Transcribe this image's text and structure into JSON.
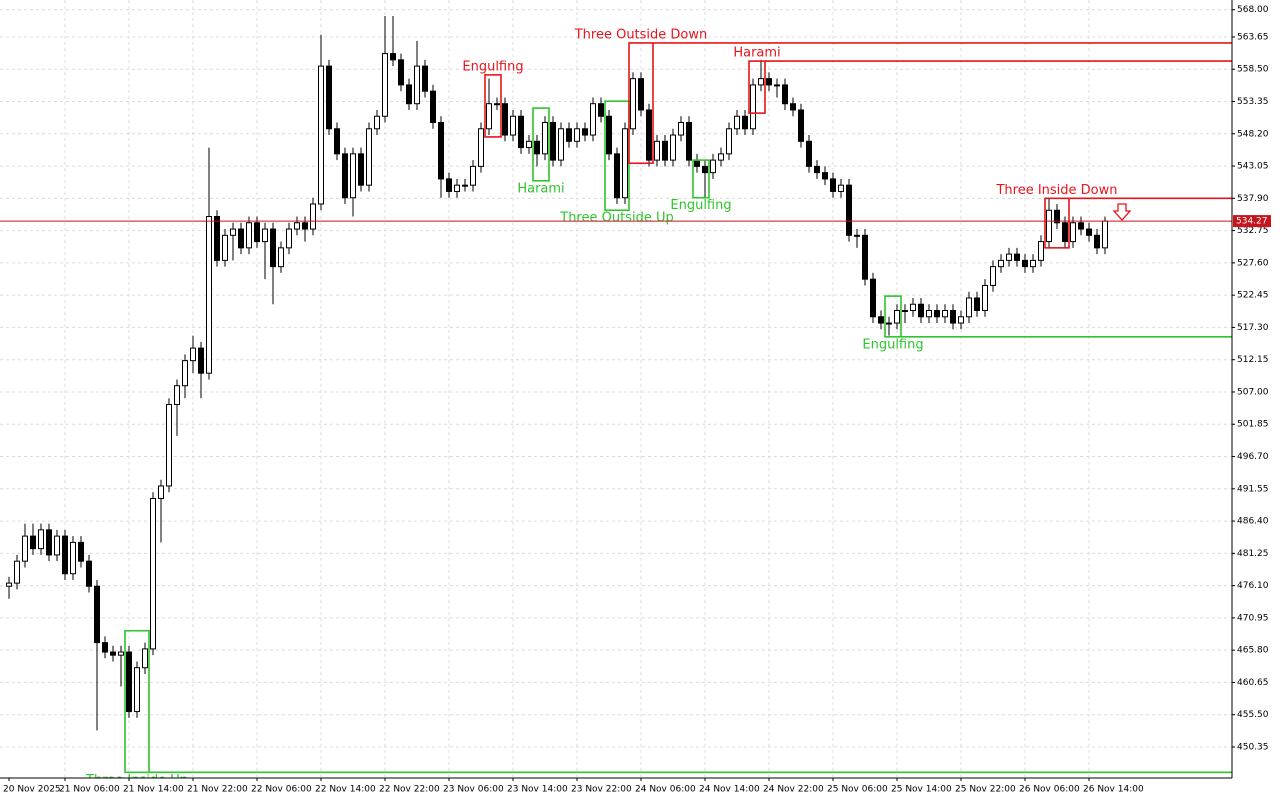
{
  "chart_data": {
    "type": "candlestick",
    "up_color": "#ffffff",
    "down_color": "#000000",
    "outline_color": "#000000",
    "bear_color": "#e8141c",
    "bull_color": "#2ec52e",
    "grid": true,
    "ylim": [
      445.4,
      569.55
    ],
    "yticks": [
      {
        "value": 568,
        "label": "568.00"
      },
      563.65,
      {
        "value": 558.5,
        "label": "558.50"
      },
      553.35,
      {
        "value": 548.2,
        "label": "548.20"
      },
      543.05,
      {
        "value": 537.9,
        "label": "537.90"
      },
      532.75,
      {
        "value": 527.6,
        "label": "527.60"
      },
      522.45,
      {
        "value": 517.3,
        "label": "517.30"
      },
      512.15,
      {
        "value": 507,
        "label": "507.00"
      },
      501.85,
      {
        "value": 496.7,
        "label": "496.70"
      },
      491.55,
      {
        "value": 486.4,
        "label": "486.40"
      },
      481.25,
      {
        "value": 476.1,
        "label": "476.10"
      },
      470.95,
      {
        "value": 465.8,
        "label": "465.80"
      },
      460.65,
      {
        "value": 455.5,
        "label": "455.50"
      },
      450.35
    ],
    "last_price": 534.27,
    "categories": [
      "20 Nov 2025",
      null,
      null,
      null,
      null,
      null,
      null,
      "21 Nov 06:00",
      null,
      null,
      null,
      null,
      null,
      null,
      null,
      "21 Nov 14:00",
      null,
      null,
      null,
      null,
      null,
      null,
      null,
      "21 Nov 22:00",
      null,
      null,
      null,
      null,
      null,
      null,
      null,
      "22 Nov 06:00",
      null,
      null,
      null,
      null,
      null,
      null,
      null,
      "22 Nov 14:00",
      null,
      null,
      null,
      null,
      null,
      null,
      null,
      "22 Nov 22:00",
      null,
      null,
      null,
      null,
      null,
      null,
      null,
      "23 Nov 06:00",
      null,
      null,
      null,
      null,
      null,
      null,
      null,
      "23 Nov 14:00",
      null,
      null,
      null,
      null,
      null,
      null,
      null,
      "23 Nov 22:00",
      null,
      null,
      null,
      null,
      null,
      null,
      null,
      "24 Nov 06:00",
      null,
      null,
      null,
      null,
      null,
      null,
      null,
      "24 Nov 14:00",
      null,
      null,
      null,
      null,
      null,
      null,
      null,
      "24 Nov 22:00",
      null,
      null,
      null,
      null,
      null,
      null,
      null,
      "25 Nov 06:00",
      null,
      null,
      null,
      null,
      null,
      null,
      null,
      "25 Nov 14:00",
      null,
      null,
      null,
      null,
      null,
      null,
      null,
      "25 Nov 22:00",
      null,
      null,
      null,
      null,
      null,
      null,
      null,
      "26 Nov 06:00",
      null,
      null,
      null,
      null,
      null,
      null,
      null,
      "26 Nov 14:00",
      null,
      null
    ],
    "ohlc": [
      [
        476,
        477.5,
        474,
        476.5
      ],
      [
        476.5,
        481,
        475.5,
        480
      ],
      [
        480,
        486,
        479,
        484
      ],
      [
        484,
        486,
        481,
        482
      ],
      [
        482,
        486,
        481,
        485
      ],
      [
        485,
        486,
        480,
        481
      ],
      [
        481,
        485,
        480,
        484
      ],
      [
        484,
        485,
        477,
        478
      ],
      [
        478,
        484,
        477,
        483
      ],
      [
        483,
        484,
        479,
        480
      ],
      [
        480,
        481,
        475,
        476
      ],
      [
        476,
        477,
        453,
        467
      ],
      [
        467,
        468,
        464.5,
        465.5
      ],
      [
        465.5,
        466.5,
        464,
        465
      ],
      [
        465,
        466.5,
        460,
        465.5
      ],
      [
        465.5,
        466.5,
        455,
        456
      ],
      [
        456,
        464,
        455,
        463
      ],
      [
        463,
        467,
        462,
        466
      ],
      [
        466,
        491,
        465,
        490
      ],
      [
        490,
        493,
        483,
        492
      ],
      [
        492,
        506,
        491,
        505
      ],
      [
        505,
        509,
        500,
        508
      ],
      [
        508,
        513,
        506,
        512
      ],
      [
        512,
        516,
        510,
        514
      ],
      [
        514,
        515,
        506,
        510
      ],
      [
        510,
        546,
        509,
        535
      ],
      [
        535,
        536,
        527,
        528
      ],
      [
        528,
        533,
        527,
        532
      ],
      [
        532,
        534,
        528,
        533
      ],
      [
        533,
        534,
        529,
        530
      ],
      [
        530,
        535,
        529,
        534
      ],
      [
        534,
        535,
        530,
        531
      ],
      [
        531,
        534,
        525,
        533
      ],
      [
        533,
        534,
        521,
        527
      ],
      [
        527,
        531,
        526,
        530
      ],
      [
        530,
        534,
        529,
        533
      ],
      [
        533,
        535,
        532,
        534
      ],
      [
        534,
        535,
        531,
        533
      ],
      [
        533,
        538,
        532,
        537
      ],
      [
        537,
        564,
        536,
        559
      ],
      [
        559,
        560,
        548,
        549
      ],
      [
        549,
        550,
        544,
        545
      ],
      [
        545,
        546,
        537,
        538
      ],
      [
        538,
        546,
        535,
        545
      ],
      [
        545,
        546,
        539,
        540
      ],
      [
        540,
        550,
        539,
        549
      ],
      [
        549,
        552,
        548,
        551
      ],
      [
        551,
        567,
        550,
        561
      ],
      [
        561,
        567,
        559,
        560
      ],
      [
        560,
        561,
        555,
        556
      ],
      [
        556,
        557,
        552,
        553
      ],
      [
        553,
        563,
        552,
        559
      ],
      [
        559,
        560,
        554,
        555
      ],
      [
        555,
        556,
        549,
        550
      ],
      [
        550,
        551,
        538,
        541
      ],
      [
        541,
        542,
        538,
        539
      ],
      [
        539,
        541,
        538,
        540
      ],
      [
        540,
        541,
        539,
        540
      ],
      [
        540,
        544,
        539,
        543
      ],
      [
        543,
        550,
        542,
        549
      ],
      [
        549,
        557,
        548,
        553
      ],
      [
        553,
        554,
        552,
        553
      ],
      [
        553,
        554,
        547,
        548
      ],
      [
        548,
        552,
        547,
        551
      ],
      [
        551,
        552,
        545,
        546
      ],
      [
        546,
        548,
        545,
        547
      ],
      [
        547,
        548,
        543,
        545
      ],
      [
        545,
        551,
        544,
        550
      ],
      [
        550,
        551,
        543,
        544
      ],
      [
        544,
        550,
        543,
        549
      ],
      [
        549,
        550,
        546,
        547
      ],
      [
        547,
        550,
        546,
        549
      ],
      [
        549,
        550,
        547,
        548
      ],
      [
        548,
        554,
        547,
        553
      ],
      [
        553,
        554,
        550,
        551
      ],
      [
        551,
        552,
        544,
        545
      ],
      [
        545,
        546,
        537,
        538
      ],
      [
        538,
        550,
        537,
        549
      ],
      [
        549,
        558,
        548,
        557
      ],
      [
        557,
        558,
        551,
        552
      ],
      [
        552,
        553,
        543,
        544
      ],
      [
        544,
        548,
        543,
        547
      ],
      [
        547,
        548,
        543,
        544
      ],
      [
        544,
        549,
        543,
        548
      ],
      [
        548,
        551,
        547,
        550
      ],
      [
        550,
        551,
        543,
        544
      ],
      [
        544,
        545,
        542,
        543
      ],
      [
        543,
        544,
        538,
        542
      ],
      [
        542,
        545,
        541,
        544
      ],
      [
        544,
        546,
        543,
        545
      ],
      [
        545,
        550,
        544,
        549
      ],
      [
        549,
        552,
        548,
        551
      ],
      [
        551,
        552,
        548,
        549
      ],
      [
        549,
        557,
        548,
        556
      ],
      [
        556,
        560,
        555,
        557
      ],
      [
        557,
        558,
        555,
        556
      ],
      [
        556,
        557,
        554,
        556
      ],
      [
        556,
        557,
        552,
        553
      ],
      [
        553,
        554,
        551,
        552
      ],
      [
        552,
        553,
        546,
        547
      ],
      [
        547,
        548,
        542,
        543
      ],
      [
        543,
        544,
        541,
        542
      ],
      [
        542,
        543,
        540,
        541
      ],
      [
        541,
        542,
        538,
        539
      ],
      [
        539,
        541,
        538,
        540
      ],
      [
        540,
        541,
        531,
        532
      ],
      [
        532,
        533,
        530,
        532
      ],
      [
        532,
        533,
        524,
        525
      ],
      [
        525,
        526,
        518,
        519
      ],
      [
        519,
        520,
        517,
        518
      ],
      [
        518,
        519,
        516,
        518
      ],
      [
        518,
        521,
        517,
        520
      ],
      [
        520,
        521,
        518,
        520
      ],
      [
        520,
        522,
        519,
        521
      ],
      [
        521,
        522,
        518,
        519
      ],
      [
        519,
        521,
        518,
        520
      ],
      [
        520,
        521,
        518,
        519
      ],
      [
        519,
        521,
        518,
        520
      ],
      [
        520,
        521,
        517,
        518
      ],
      [
        518,
        520,
        517,
        519
      ],
      [
        519,
        523,
        518,
        522
      ],
      [
        522,
        523,
        519,
        520
      ],
      [
        520,
        525,
        519,
        524
      ],
      [
        524,
        528,
        523,
        527
      ],
      [
        527,
        529,
        526,
        528
      ],
      [
        528,
        530,
        527,
        529
      ],
      [
        529,
        530,
        527,
        528
      ],
      [
        528,
        529,
        526,
        527
      ],
      [
        527,
        529,
        526,
        528
      ],
      [
        528,
        532,
        527,
        531
      ],
      [
        531,
        538,
        530,
        536
      ],
      [
        536,
        537,
        533,
        534
      ],
      [
        534,
        535,
        530,
        531
      ],
      [
        531,
        535,
        530,
        534
      ],
      [
        534,
        535,
        532,
        533
      ],
      [
        533,
        534,
        531,
        532
      ],
      [
        532,
        533,
        529,
        530
      ],
      [
        530,
        535,
        529,
        534.27
      ]
    ],
    "patterns": [
      {
        "label": "Three Inside Up",
        "color": "#2ec52e",
        "from": 15,
        "to": 17,
        "high": 468.9,
        "low": 446.3,
        "level": 446.3
      },
      {
        "label": "Engulfing",
        "color": "#e8141c",
        "from": 60,
        "to": 61,
        "high": 557.6,
        "low": 547.7
      },
      {
        "label": "Harami",
        "color": "#2ec52e",
        "from": 66,
        "to": 67,
        "high": 552.3,
        "low": 540.7
      },
      {
        "label": "Three Outside Up",
        "color": "#2ec52e",
        "from": 75,
        "to": 77,
        "high": 553.4,
        "low": 536
      },
      {
        "label": "Three Outside Down",
        "color": "#e8141c",
        "from": 78,
        "to": 80,
        "high": 562.7,
        "low": 543.5,
        "level": 562.7
      },
      {
        "label": "Engulfing",
        "color": "#2ec52e",
        "from": 86,
        "to": 87,
        "high": 544,
        "low": 538
      },
      {
        "label": "Harami",
        "color": "#e8141c",
        "from": 93,
        "to": 94,
        "high": 559.8,
        "low": 551.5,
        "level": 559.8
      },
      {
        "label": "Engulfing",
        "color": "#2ec52e",
        "from": 110,
        "to": 111,
        "high": 522.3,
        "low": 515.8,
        "level": 515.8
      },
      {
        "label": "Three Inside Down",
        "color": "#e8141c",
        "from": 130,
        "to": 132,
        "high": 537.9,
        "low": 530,
        "level": 537.9
      }
    ]
  }
}
